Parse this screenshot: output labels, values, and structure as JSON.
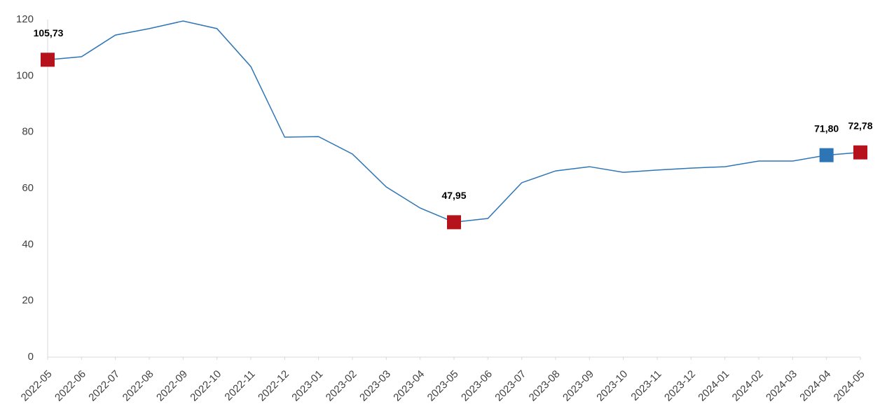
{
  "chart_data": {
    "type": "line",
    "categories": [
      "2022-05",
      "2022-06",
      "2022-07",
      "2022-08",
      "2022-09",
      "2022-10",
      "2022-11",
      "2022-12",
      "2023-01",
      "2023-02",
      "2023-03",
      "2023-04",
      "2023-05",
      "2023-06",
      "2023-07",
      "2023-08",
      "2023-09",
      "2023-10",
      "2023-11",
      "2023-12",
      "2024-01",
      "2024-02",
      "2024-03",
      "2024-04",
      "2024-05"
    ],
    "series": [
      {
        "color": "#2e75b6",
        "values": [
          105.73,
          106.8,
          114.5,
          116.8,
          119.5,
          116.8,
          103.3,
          78.2,
          78.4,
          72.2,
          60.5,
          53.0,
          47.95,
          49.3,
          62.0,
          66.2,
          67.7,
          65.7,
          66.5,
          67.2,
          67.7,
          69.7,
          69.7,
          71.8,
          72.78
        ],
        "value_labels": [
          "105,73",
          null,
          null,
          null,
          null,
          null,
          null,
          null,
          null,
          null,
          null,
          null,
          "47,95",
          null,
          null,
          null,
          null,
          null,
          null,
          null,
          null,
          null,
          null,
          "71,80",
          "72,78"
        ],
        "marker_colors": [
          "#b5121b",
          null,
          null,
          null,
          null,
          null,
          null,
          null,
          null,
          null,
          null,
          null,
          "#b5121b",
          null,
          null,
          null,
          null,
          null,
          null,
          null,
          null,
          null,
          null,
          "#2e75b6",
          "#b5121b"
        ]
      }
    ],
    "ylim": [
      0,
      120
    ],
    "yticks": [
      0,
      20,
      40,
      60,
      80,
      100,
      120
    ],
    "grid": false
  }
}
